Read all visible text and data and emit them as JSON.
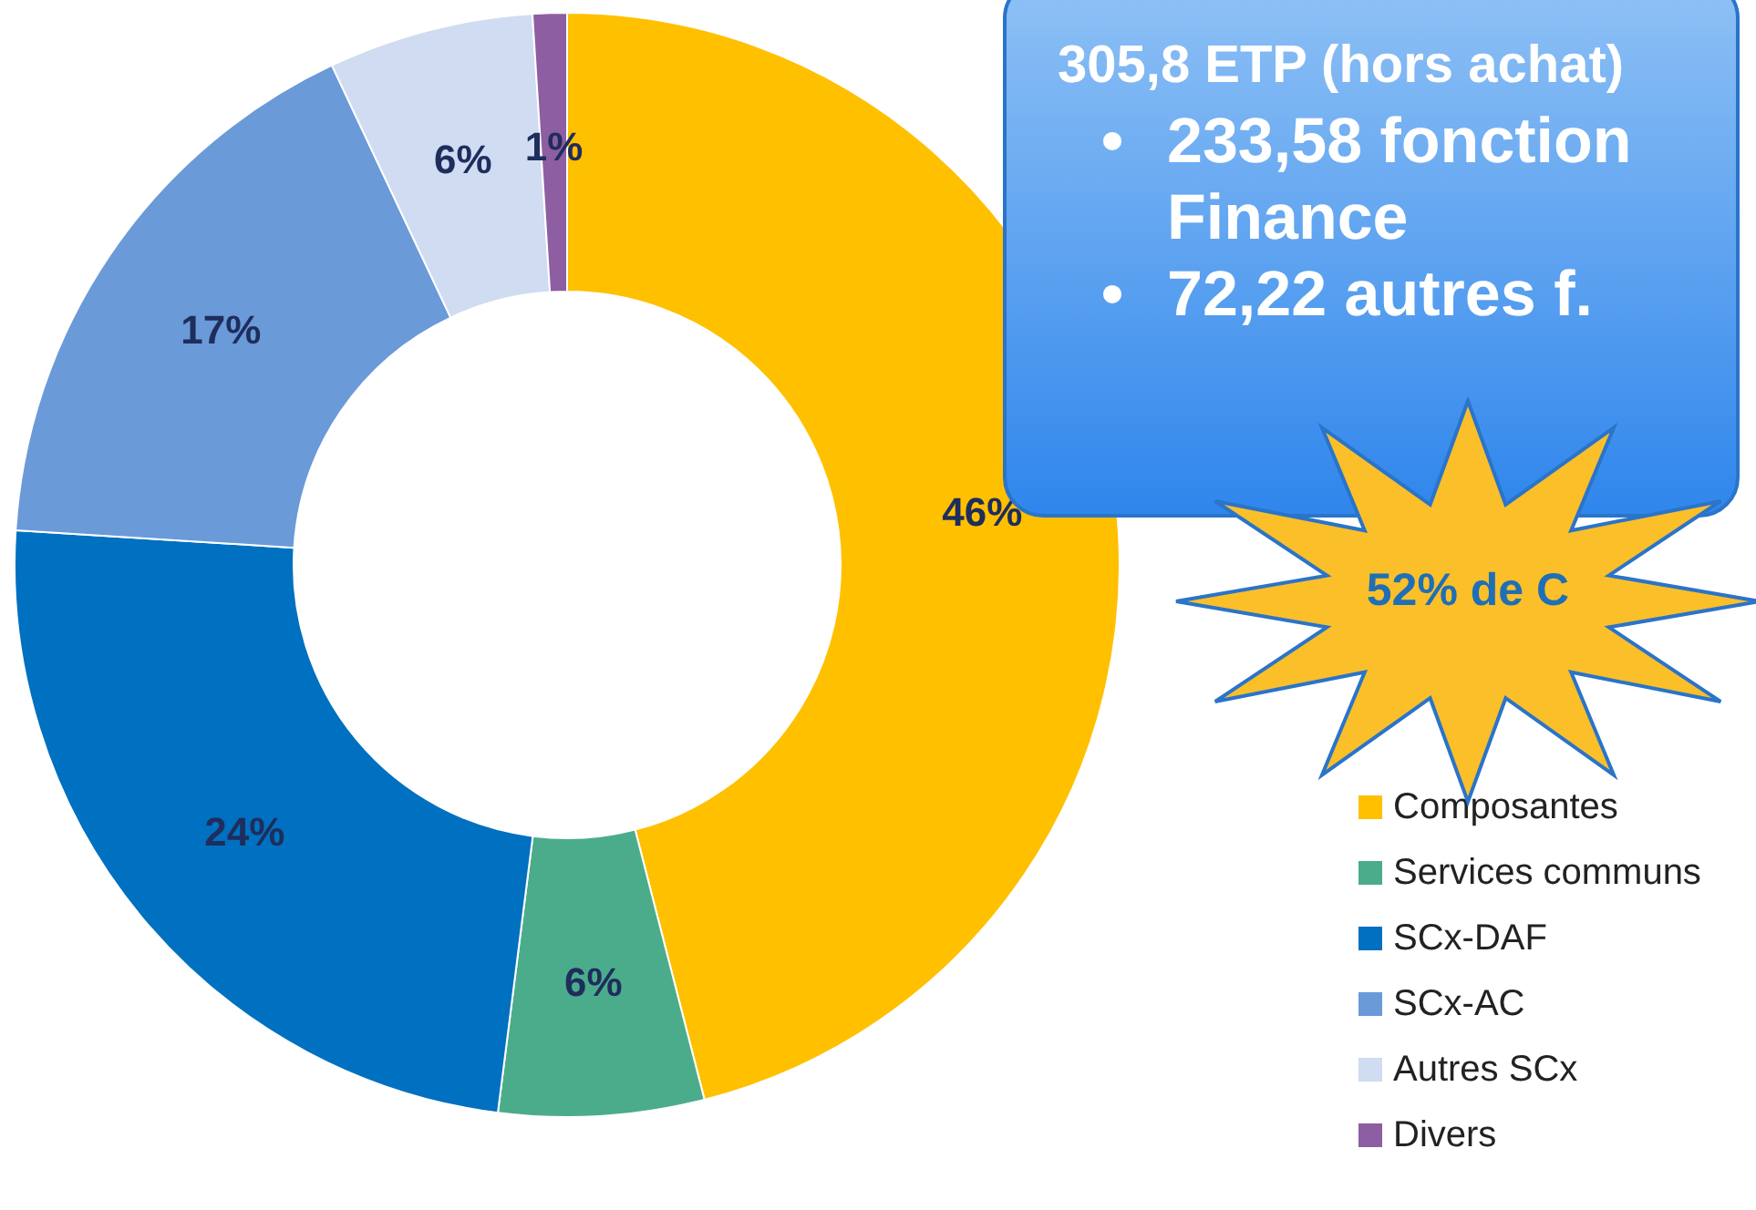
{
  "chart_data": {
    "type": "donut",
    "categories": [
      "Composantes",
      "Services communs",
      "SCx-DAF",
      "SCx-AC",
      "Autres SCx",
      "Divers"
    ],
    "values": [
      46,
      6,
      24,
      17,
      6,
      1
    ],
    "value_labels": [
      "46%",
      "6%",
      "24%",
      "17%",
      "6%",
      "1%"
    ],
    "colors": [
      "#ffc000",
      "#4bac8c",
      "#0070c0",
      "#6a9ad8",
      "#cfdcf2",
      "#8e5ea2"
    ],
    "legend": "bottom right",
    "annotations": [
      "305,8 ETP (hors achat)",
      "• 233,58 fonction Finance",
      "• 72,22 autres f.",
      "52% de C"
    ]
  }
}
